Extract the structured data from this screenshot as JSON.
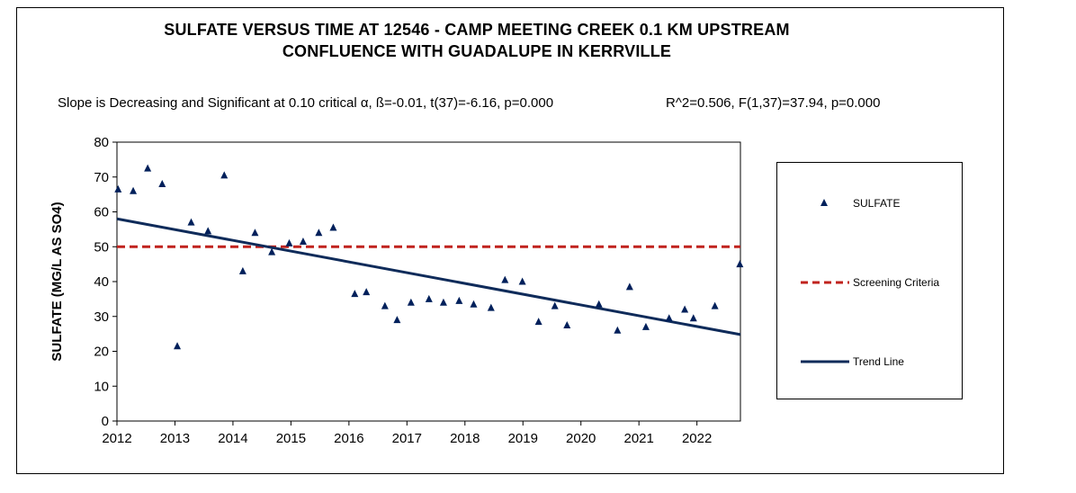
{
  "chart_data": {
    "type": "scatter",
    "title": "SULFATE VERSUS TIME AT 12546 - CAMP MEETING CREEK 0.1 KM UPSTREAM",
    "title_line2": "CONFLUENCE WITH GUADALUPE IN KERRVILLE",
    "stats_left": "Slope is Decreasing and Significant at 0.10 critical α, ß=-0.01, t(37)=-6.16, p=0.000",
    "stats_right": "R^2=0.506,  F(1,37)=37.94, p=0.000",
    "xlabel": "",
    "ylabel": "SULFATE (MG/L AS SO4)",
    "xlim": [
      2012,
      2022.75
    ],
    "ylim": [
      0,
      80
    ],
    "x_ticks": [
      "2012",
      "2013",
      "2014",
      "2015",
      "2016",
      "2017",
      "2018",
      "2019",
      "2020",
      "2021",
      "2022"
    ],
    "y_ticks": [
      "0",
      "10",
      "20",
      "30",
      "40",
      "50",
      "60",
      "70",
      "80"
    ],
    "series": [
      {
        "name": "SULFATE",
        "color": "#00205b",
        "points": [
          [
            2012.02,
            66.5
          ],
          [
            2012.28,
            66
          ],
          [
            2012.53,
            72.5
          ],
          [
            2012.78,
            68
          ],
          [
            2013.04,
            21.5
          ],
          [
            2013.28,
            57
          ],
          [
            2013.57,
            54.5
          ],
          [
            2013.85,
            70.5
          ],
          [
            2014.17,
            43
          ],
          [
            2014.38,
            54
          ],
          [
            2014.67,
            48.5
          ],
          [
            2014.97,
            51
          ],
          [
            2015.21,
            51.5
          ],
          [
            2015.48,
            54
          ],
          [
            2015.73,
            55.5
          ],
          [
            2016.1,
            36.5
          ],
          [
            2016.3,
            37
          ],
          [
            2016.62,
            33
          ],
          [
            2016.83,
            29
          ],
          [
            2017.07,
            34
          ],
          [
            2017.38,
            35
          ],
          [
            2017.63,
            34
          ],
          [
            2017.9,
            34.5
          ],
          [
            2018.15,
            33.5
          ],
          [
            2018.45,
            32.5
          ],
          [
            2018.69,
            40.5
          ],
          [
            2018.99,
            40
          ],
          [
            2019.27,
            28.5
          ],
          [
            2019.55,
            33
          ],
          [
            2019.76,
            27.5
          ],
          [
            2020.31,
            33.5
          ],
          [
            2020.63,
            26
          ],
          [
            2020.84,
            38.5
          ],
          [
            2021.12,
            27
          ],
          [
            2021.52,
            29.5
          ],
          [
            2021.79,
            32
          ],
          [
            2021.94,
            29.5
          ],
          [
            2022.31,
            33
          ],
          [
            2022.74,
            45
          ]
        ]
      }
    ],
    "screening_criteria": {
      "name": "Screening Criteria",
      "value": 50,
      "color": "#c0221d"
    },
    "trend_line": {
      "name": "Trend Line",
      "start": [
        2012,
        58
      ],
      "end": [
        2022.75,
        24.8
      ],
      "color": "#0f2b5a"
    },
    "legend_position": "right"
  }
}
